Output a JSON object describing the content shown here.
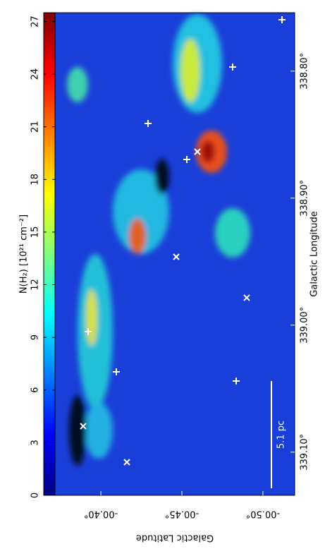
{
  "chart_data": {
    "type": "image",
    "xlabel": "Galactic Longitude",
    "ylabel": "Galactic Latitude",
    "xlim": [
      339.134,
      338.754
    ],
    "xticks": [
      {
        "value": 339.1,
        "label": "339.10°"
      },
      {
        "value": 339.0,
        "label": "339.00°"
      },
      {
        "value": 338.9,
        "label": "338.90°"
      },
      {
        "value": 338.8,
        "label": "338.80°"
      }
    ],
    "ylim": [
      -0.3717,
      -0.5196
    ],
    "yticks": [
      {
        "value": -0.4,
        "label": "-00.40°"
      },
      {
        "value": -0.45,
        "label": "-00.45°"
      },
      {
        "value": -0.5,
        "label": "-00.50°"
      }
    ],
    "scalebar_label": "5.1 pc",
    "colorbar": {
      "label": "N(H₂) [10²¹ cm⁻²]",
      "lim": [
        0,
        27.5
      ],
      "ticks": [
        0,
        3,
        6,
        9,
        12,
        15,
        18,
        21,
        24,
        27
      ],
      "colormap": [
        "#00007f",
        "#0000ff",
        "#007fff",
        "#00ffff",
        "#7fff7f",
        "#ffff00",
        "#ff7f00",
        "#ff0000",
        "#7f0000"
      ]
    }
  }
}
